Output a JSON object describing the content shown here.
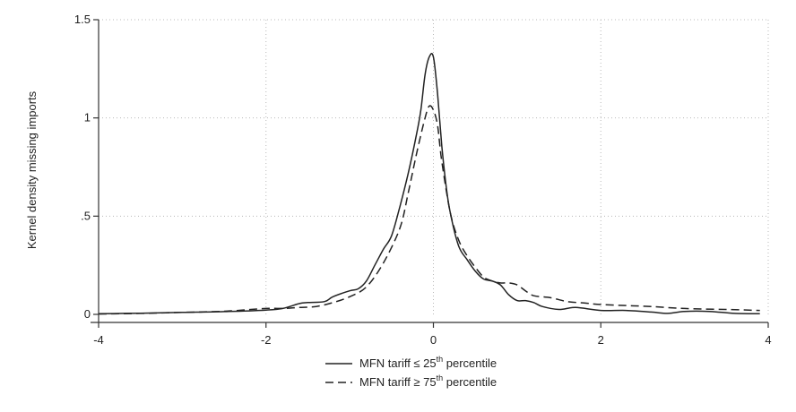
{
  "chart_data": {
    "type": "line",
    "title": "",
    "xlabel": "",
    "ylabel": "Kernel density missing imports",
    "xlim": [
      -4,
      4
    ],
    "ylim": [
      0,
      1.5
    ],
    "xticks": [
      -4,
      -2,
      0,
      2,
      4
    ],
    "xtick_labels": [
      "-4",
      "-2",
      "0",
      "2",
      "4"
    ],
    "yticks": [
      0,
      0.5,
      1,
      1.5
    ],
    "ytick_labels": [
      "0",
      ".5",
      "1",
      "1.5"
    ],
    "grid": true,
    "legend_position": "bottom",
    "series": [
      {
        "name": "MFN tariff ≤ 25th percentile",
        "label_main": "MFN tariff ≤ 25",
        "label_sup": "th",
        "label_tail": " percentile",
        "style": "solid",
        "color": "#222222",
        "x": [
          -4,
          -3.5,
          -3,
          -2.5,
          -2,
          -1.8,
          -1.6,
          -1.5,
          -1.3,
          -1.2,
          -1.0,
          -0.9,
          -0.8,
          -0.7,
          -0.6,
          -0.5,
          -0.4,
          -0.3,
          -0.2,
          -0.15,
          -0.1,
          -0.05,
          0,
          0.05,
          0.1,
          0.15,
          0.2,
          0.3,
          0.4,
          0.5,
          0.6,
          0.7,
          0.8,
          0.9,
          1.0,
          1.1,
          1.2,
          1.3,
          1.5,
          1.7,
          2.0,
          2.3,
          2.6,
          2.8,
          3.0,
          3.3,
          3.6,
          3.9
        ],
        "y": [
          0.003,
          0.006,
          0.01,
          0.014,
          0.022,
          0.03,
          0.055,
          0.06,
          0.065,
          0.09,
          0.12,
          0.13,
          0.17,
          0.25,
          0.33,
          0.4,
          0.55,
          0.72,
          0.92,
          1.04,
          1.22,
          1.31,
          1.31,
          1.12,
          0.86,
          0.66,
          0.52,
          0.35,
          0.28,
          0.22,
          0.18,
          0.17,
          0.15,
          0.1,
          0.07,
          0.07,
          0.06,
          0.04,
          0.025,
          0.035,
          0.02,
          0.02,
          0.012,
          0.005,
          0.015,
          0.015,
          0.005,
          0.003
        ]
      },
      {
        "name": "MFN tariff ≥ 75th percentile",
        "label_main": "MFN tariff ≥ 75",
        "label_sup": "th",
        "label_tail": " percentile",
        "style": "dashed",
        "color": "#222222",
        "x": [
          -4,
          -3.5,
          -3,
          -2.5,
          -2,
          -1.8,
          -1.6,
          -1.4,
          -1.2,
          -1.0,
          -0.8,
          -0.6,
          -0.4,
          -0.3,
          -0.2,
          -0.1,
          -0.05,
          0,
          0.05,
          0.1,
          0.2,
          0.3,
          0.4,
          0.5,
          0.6,
          0.7,
          0.8,
          0.9,
          1.0,
          1.1,
          1.2,
          1.4,
          1.6,
          1.8,
          2.0,
          2.3,
          2.6,
          3.0,
          3.5,
          3.9
        ],
        "y": [
          0.002,
          0.005,
          0.01,
          0.016,
          0.03,
          0.03,
          0.035,
          0.04,
          0.06,
          0.09,
          0.14,
          0.26,
          0.44,
          0.62,
          0.82,
          1.0,
          1.06,
          1.04,
          0.96,
          0.78,
          0.52,
          0.38,
          0.3,
          0.24,
          0.19,
          0.17,
          0.16,
          0.16,
          0.15,
          0.12,
          0.095,
          0.085,
          0.065,
          0.058,
          0.05,
          0.045,
          0.04,
          0.03,
          0.025,
          0.02
        ]
      }
    ]
  }
}
